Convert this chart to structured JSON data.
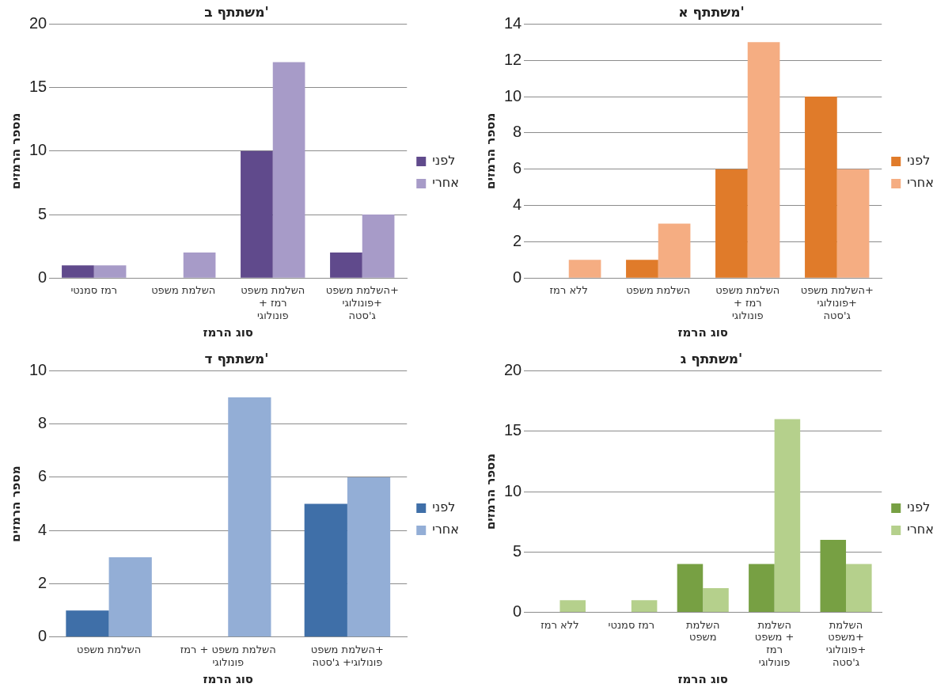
{
  "chart_data": [
    {
      "type": "bar",
      "title": "משתתף ב'",
      "xlabel": "סוג הרמז",
      "ylabel": "מספר הרמזים",
      "categories": [
        "רמז סמנטי",
        "השלמת משפט",
        "השלמת משפט + רמז פונולוגי",
        "השלמת משפט+ פונולוגי+ ג'סטה"
      ],
      "series": [
        {
          "name": "לפני",
          "color": "#604a8c",
          "values": [
            1,
            0,
            10,
            2
          ]
        },
        {
          "name": "אחרי",
          "color": "#a79bc8",
          "values": [
            1,
            2,
            17,
            5
          ]
        }
      ],
      "ylim": [
        0,
        20
      ],
      "yticks": [
        0,
        5,
        10,
        15,
        20
      ],
      "grid": "y",
      "legend": "right"
    },
    {
      "type": "bar",
      "title": "משתתף א'",
      "xlabel": "סוג הרמז",
      "ylabel": "מספר הרמזים",
      "categories": [
        "ללא רמז",
        "השלמת משפט",
        "השלמת משפט + רמז פונולוגי",
        "השלמת משפט+ פונולוגי+ ג'סטה"
      ],
      "series": [
        {
          "name": "לפני",
          "color": "#e07b2a",
          "values": [
            0,
            1,
            6,
            10
          ]
        },
        {
          "name": "אחרי",
          "color": "#f5ad82",
          "values": [
            1,
            3,
            13,
            6
          ]
        }
      ],
      "ylim": [
        0,
        14
      ],
      "yticks": [
        0,
        2,
        4,
        6,
        8,
        10,
        12,
        14
      ],
      "grid": "y",
      "legend": "right"
    },
    {
      "type": "bar",
      "title": "משתתף ד'",
      "xlabel": "סוג הרמז",
      "ylabel": "מספר הרמזים",
      "categories": [
        "השלמת משפט",
        "השלמת משפט + רמז פונולוגי",
        "השלמת משפט+ פונולוגי+ ג'סטה"
      ],
      "series": [
        {
          "name": "לפני",
          "color": "#3f6fa8",
          "values": [
            1,
            0,
            5
          ]
        },
        {
          "name": "אחרי",
          "color": "#93aed6",
          "values": [
            3,
            9,
            6
          ]
        }
      ],
      "ylim": [
        0,
        10
      ],
      "yticks": [
        0,
        2,
        4,
        6,
        8,
        10
      ],
      "grid": "y",
      "legend": "right"
    },
    {
      "type": "bar",
      "title": "משתתף ג'",
      "xlabel": "סוג הרמז",
      "ylabel": "מספר הרמזים",
      "categories": [
        "ללא רמז",
        "רמז סמנטי",
        "השלמת משפט",
        "השלמת משפט + רמז פונולוגי",
        "השלמת משפט+ פונולוגי+ ג'סטה"
      ],
      "series": [
        {
          "name": "לפני",
          "color": "#77a043",
          "values": [
            0,
            0,
            4,
            4,
            6
          ]
        },
        {
          "name": "אחרי",
          "color": "#b5d08c",
          "values": [
            1,
            1,
            2,
            16,
            4
          ]
        }
      ],
      "ylim": [
        0,
        20
      ],
      "yticks": [
        0,
        5,
        10,
        15,
        20
      ],
      "grid": "y",
      "legend": "right"
    }
  ]
}
